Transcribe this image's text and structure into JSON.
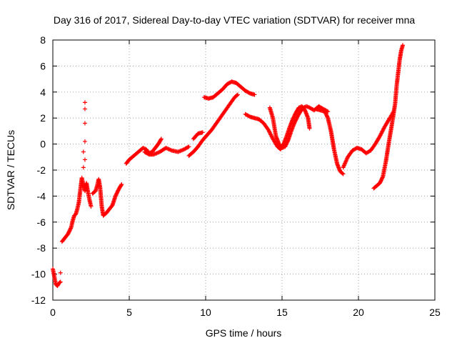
{
  "chart_data": {
    "type": "scatter",
    "title": "Day 316 of 2017, Sidereal Day-to-day VTEC variation (SDTVAR) for receiver mna",
    "xlabel": "GPS time / hours",
    "ylabel": "SDTVAR / TECUs",
    "xlim": [
      0,
      25
    ],
    "ylim": [
      -12,
      8
    ],
    "xticks": [
      0,
      5,
      10,
      15,
      20,
      25
    ],
    "yticks": [
      -12,
      -10,
      -8,
      -6,
      -4,
      -2,
      0,
      2,
      4,
      6,
      8
    ],
    "grid": true,
    "marker": "+",
    "color": "#ff0000",
    "series": [
      {
        "name": "",
        "segments": [
          [
            [
              0.0,
              -9.6
            ],
            [
              0.1,
              -10.2
            ],
            [
              0.2,
              -10.8
            ],
            [
              0.3,
              -10.9
            ],
            [
              0.4,
              -10.7
            ],
            [
              0.5,
              -10.6
            ]
          ],
          [
            [
              0.6,
              -7.5
            ],
            [
              0.8,
              -7.2
            ],
            [
              1.0,
              -6.9
            ],
            [
              1.2,
              -6.4
            ],
            [
              1.3,
              -5.9
            ],
            [
              1.4,
              -5.5
            ],
            [
              1.5,
              -5.4
            ],
            [
              1.6,
              -5.0
            ],
            [
              1.7,
              -4.5
            ],
            [
              1.8,
              -3.5
            ],
            [
              1.9,
              -2.6
            ],
            [
              2.0,
              -3.2
            ],
            [
              2.1,
              -3.6
            ],
            [
              2.2,
              -3.0
            ],
            [
              2.3,
              -3.7
            ],
            [
              2.4,
              -4.3
            ],
            [
              2.5,
              -4.8
            ]
          ],
          [
            [
              2.6,
              -3.8
            ],
            [
              2.8,
              -3.6
            ],
            [
              2.9,
              -3.2
            ],
            [
              3.0,
              -2.7
            ],
            [
              3.1,
              -3.4
            ],
            [
              3.2,
              -4.8
            ],
            [
              3.3,
              -5.5
            ],
            [
              3.5,
              -5.3
            ],
            [
              3.7,
              -5.0
            ],
            [
              3.9,
              -4.7
            ],
            [
              4.1,
              -4.0
            ],
            [
              4.3,
              -3.5
            ],
            [
              4.5,
              -3.1
            ]
          ],
          [
            [
              4.8,
              -1.5
            ],
            [
              5.0,
              -1.2
            ],
            [
              5.3,
              -0.9
            ],
            [
              5.6,
              -0.6
            ],
            [
              5.9,
              -0.3
            ],
            [
              6.1,
              -0.4
            ],
            [
              6.3,
              -0.7
            ],
            [
              6.5,
              -0.6
            ],
            [
              6.7,
              -0.3
            ],
            [
              6.9,
              0.0
            ],
            [
              7.1,
              0.4
            ]
          ],
          [
            [
              6.0,
              -0.6
            ],
            [
              6.3,
              -0.8
            ],
            [
              6.6,
              -0.8
            ],
            [
              7.0,
              -0.6
            ],
            [
              7.4,
              -0.3
            ],
            [
              7.8,
              -0.5
            ],
            [
              8.2,
              -0.6
            ],
            [
              8.6,
              -0.4
            ],
            [
              8.9,
              -0.2
            ]
          ],
          [
            [
              8.9,
              -0.9
            ],
            [
              9.2,
              -0.6
            ],
            [
              9.5,
              -0.2
            ],
            [
              9.8,
              0.3
            ],
            [
              10.1,
              0.7
            ],
            [
              10.4,
              1.1
            ],
            [
              10.7,
              1.6
            ],
            [
              11.0,
              2.1
            ],
            [
              11.3,
              2.6
            ],
            [
              11.6,
              3.1
            ],
            [
              11.9,
              3.6
            ],
            [
              12.1,
              3.8
            ]
          ],
          [
            [
              9.2,
              0.4
            ],
            [
              9.5,
              0.8
            ],
            [
              9.8,
              0.9
            ]
          ],
          [
            [
              9.9,
              3.6
            ],
            [
              10.2,
              3.5
            ],
            [
              10.5,
              3.6
            ],
            [
              10.8,
              3.9
            ],
            [
              11.1,
              4.2
            ],
            [
              11.4,
              4.6
            ],
            [
              11.7,
              4.8
            ],
            [
              12.0,
              4.7
            ],
            [
              12.3,
              4.4
            ],
            [
              12.6,
              4.1
            ],
            [
              12.9,
              3.9
            ],
            [
              13.2,
              3.8
            ]
          ],
          [
            [
              12.6,
              2.3
            ],
            [
              12.9,
              2.1
            ],
            [
              13.2,
              2.0
            ],
            [
              13.5,
              1.9
            ],
            [
              13.8,
              1.6
            ],
            [
              14.1,
              1.1
            ],
            [
              14.4,
              0.4
            ],
            [
              14.7,
              -0.2
            ],
            [
              14.9,
              -0.4
            ],
            [
              15.1,
              0.0
            ],
            [
              15.3,
              0.6
            ],
            [
              15.5,
              1.3
            ],
            [
              15.7,
              1.9
            ],
            [
              15.9,
              2.4
            ],
            [
              16.1,
              2.8
            ],
            [
              16.3,
              2.9
            ],
            [
              16.5,
              2.6
            ],
            [
              16.7,
              2.0
            ],
            [
              16.8,
              1.2
            ]
          ],
          [
            [
              14.2,
              2.8
            ],
            [
              14.4,
              2.0
            ],
            [
              14.6,
              0.6
            ],
            [
              14.8,
              0.0
            ],
            [
              15.0,
              -0.3
            ],
            [
              15.2,
              -0.2
            ],
            [
              15.4,
              0.3
            ],
            [
              15.6,
              1.0
            ],
            [
              15.8,
              1.6
            ],
            [
              16.0,
              2.1
            ],
            [
              16.2,
              2.5
            ],
            [
              16.4,
              2.8
            ],
            [
              16.6,
              2.9
            ],
            [
              16.8,
              2.8
            ],
            [
              17.1,
              2.6
            ],
            [
              17.4,
              2.9
            ],
            [
              17.7,
              2.7
            ],
            [
              18.0,
              2.5
            ]
          ],
          [
            [
              17.2,
              2.7
            ],
            [
              17.5,
              2.6
            ],
            [
              17.8,
              2.5
            ],
            [
              18.0,
              2.0
            ],
            [
              18.2,
              1.0
            ],
            [
              18.4,
              -0.4
            ],
            [
              18.6,
              -1.5
            ],
            [
              18.8,
              -2.1
            ],
            [
              19.0,
              -2.3
            ]
          ],
          [
            [
              19.0,
              -1.8
            ],
            [
              19.3,
              -1.0
            ],
            [
              19.6,
              -0.5
            ],
            [
              19.9,
              -0.3
            ],
            [
              20.2,
              -0.4
            ],
            [
              20.5,
              -0.7
            ],
            [
              20.8,
              -0.5
            ],
            [
              21.1,
              0.0
            ],
            [
              21.4,
              0.6
            ],
            [
              21.7,
              1.3
            ],
            [
              22.0,
              1.9
            ],
            [
              22.3,
              2.5
            ]
          ],
          [
            [
              21.0,
              -3.4
            ],
            [
              21.2,
              -3.2
            ],
            [
              21.4,
              -3.0
            ],
            [
              21.6,
              -2.5
            ],
            [
              21.8,
              -1.3
            ],
            [
              22.0,
              0.2
            ],
            [
              22.2,
              1.6
            ],
            [
              22.4,
              3.1
            ],
            [
              22.5,
              4.5
            ],
            [
              22.6,
              5.5
            ],
            [
              22.7,
              6.5
            ],
            [
              22.8,
              7.2
            ],
            [
              22.9,
              7.6
            ]
          ]
        ],
        "outliers": [
          [
            2.1,
            3.2
          ],
          [
            2.1,
            2.7
          ],
          [
            2.1,
            1.6
          ],
          [
            2.1,
            0.2
          ],
          [
            2.0,
            -0.6
          ],
          [
            2.1,
            -1.2
          ],
          [
            2.0,
            -1.8
          ],
          [
            0.5,
            -9.9
          ]
        ]
      }
    ]
  }
}
